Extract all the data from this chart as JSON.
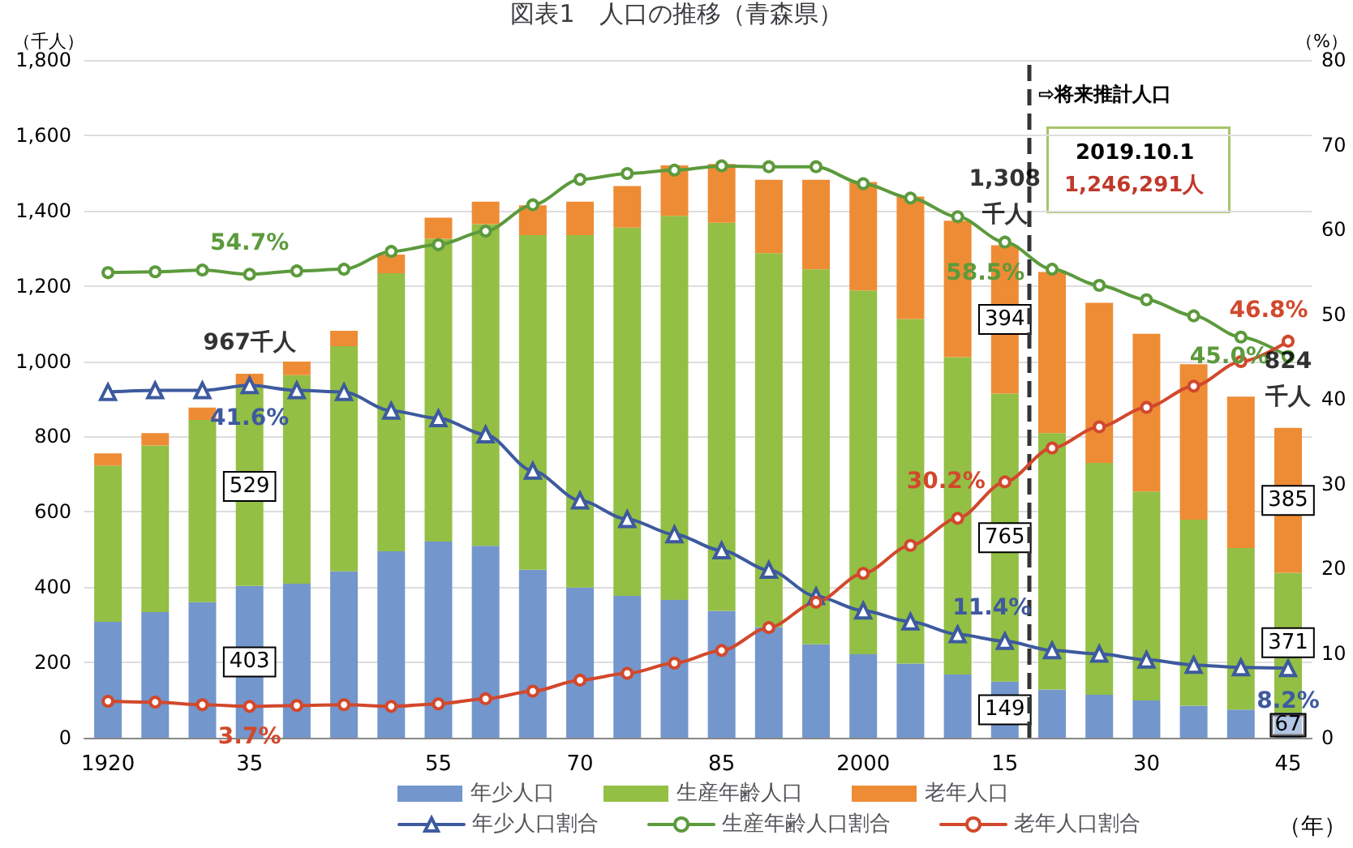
{
  "chart_data": {
    "type": "bar",
    "title": "図表1　人口の推移（青森県）",
    "ylabel": "（千人）",
    "y2label": "（%）",
    "xlabel": "（年）",
    "x": [
      1920,
      1925,
      1930,
      1935,
      1940,
      1945,
      1950,
      1955,
      1960,
      1965,
      1970,
      1975,
      1980,
      1985,
      1990,
      1995,
      2000,
      2005,
      2010,
      2015,
      2020,
      2025,
      2030,
      2035,
      2040,
      2045
    ],
    "xlim": [
      1917.5,
      2047.5
    ],
    "xticks": [
      {
        "value": 1920,
        "label": "1920"
      },
      {
        "value": 1935,
        "label": "35"
      },
      {
        "value": 1955,
        "label": "55"
      },
      {
        "value": 1970,
        "label": "70"
      },
      {
        "value": 1985,
        "label": "85"
      },
      {
        "value": 2000,
        "label": "2000"
      },
      {
        "value": 2015,
        "label": "15"
      },
      {
        "value": 2030,
        "label": "30"
      },
      {
        "value": 2045,
        "label": "45"
      }
    ],
    "ylim": [
      0,
      1800
    ],
    "yticks": [
      0,
      200,
      400,
      600,
      800,
      {
        "value": 1000,
        "label": "1,000"
      },
      {
        "value": 1200,
        "label": "1,200"
      },
      {
        "value": 1400,
        "label": "1,400"
      },
      {
        "value": 1600,
        "label": "1,600"
      },
      {
        "value": 1800,
        "label": "1,800"
      }
    ],
    "y2lim": [
      0,
      80
    ],
    "y2ticks": [
      0,
      10,
      20,
      30,
      40,
      50,
      60,
      70,
      80
    ],
    "stacked": true,
    "grid": "y",
    "legend": "bottom",
    "series": [
      {
        "name": "年少人口",
        "color": "#7396cc",
        "values": [
          308,
          334,
          360,
          403,
          409,
          442,
          495,
          521,
          510,
          446,
          399,
          377,
          366,
          337,
          294,
          248,
          222,
          197,
          168,
          149,
          128,
          114,
          99,
          85,
          75,
          67
        ],
        "value_labels": [
          null,
          null,
          null,
          "403",
          null,
          null,
          null,
          null,
          null,
          null,
          null,
          null,
          null,
          null,
          null,
          null,
          null,
          null,
          null,
          "149",
          null,
          null,
          null,
          null,
          null,
          "67"
        ]
      },
      {
        "name": "生産年齢人口",
        "color": "#93bf45",
        "values": [
          415,
          442,
          484,
          529,
          554,
          598,
          739,
          804,
          854,
          889,
          936,
          978,
          1020,
          1031,
          993,
          996,
          966,
          915,
          843,
          765,
          681,
          616,
          555,
          494,
          429,
          371
        ],
        "value_labels": [
          null,
          null,
          null,
          "529",
          null,
          null,
          null,
          null,
          null,
          null,
          null,
          null,
          null,
          null,
          null,
          null,
          null,
          null,
          null,
          "765",
          null,
          null,
          null,
          null,
          null,
          "371"
        ]
      },
      {
        "name": "老年人口",
        "color": "#ee8c35",
        "values": [
          32,
          33,
          33,
          35,
          36,
          41,
          49,
          56,
          60,
          79,
          89,
          110,
          134,
          156,
          195,
          238,
          288,
          325,
          362,
          394,
          428,
          425,
          419,
          413,
          402,
          385
        ],
        "value_labels": [
          null,
          null,
          null,
          null,
          null,
          null,
          null,
          null,
          null,
          null,
          null,
          null,
          null,
          null,
          null,
          null,
          null,
          null,
          null,
          "394",
          null,
          null,
          null,
          null,
          null,
          "385"
        ]
      },
      {
        "name": "年少人口割合",
        "type": "line",
        "axis": "y2",
        "marker": "triangle",
        "color": "#3d5a9e",
        "values": [
          40.8,
          41.0,
          41.0,
          41.6,
          41.0,
          40.8,
          38.6,
          37.7,
          35.8,
          31.5,
          28.0,
          25.8,
          24.0,
          22.1,
          19.8,
          16.7,
          15.0,
          13.7,
          12.2,
          11.4,
          10.3,
          9.9,
          9.2,
          8.6,
          8.3,
          8.2
        ],
        "value_labels": [
          null,
          null,
          null,
          "41.6%",
          null,
          null,
          null,
          null,
          null,
          null,
          null,
          null,
          null,
          null,
          null,
          null,
          null,
          null,
          null,
          "11.4%",
          null,
          null,
          null,
          null,
          null,
          "8.2%"
        ]
      },
      {
        "name": "生産年齢人口割合",
        "type": "line",
        "axis": "y2",
        "marker": "circle",
        "color": "#5c9a3c",
        "values": [
          54.9,
          55.0,
          55.2,
          54.7,
          55.1,
          55.3,
          57.4,
          58.2,
          59.8,
          62.9,
          65.9,
          66.6,
          67.0,
          67.5,
          67.4,
          67.4,
          65.4,
          63.7,
          61.5,
          58.5,
          55.3,
          53.4,
          51.7,
          49.8,
          47.3,
          45.0
        ],
        "value_labels": [
          null,
          null,
          null,
          "54.7%",
          null,
          null,
          null,
          null,
          null,
          null,
          null,
          null,
          null,
          null,
          null,
          null,
          null,
          null,
          null,
          "58.5%",
          null,
          null,
          null,
          null,
          null,
          "45.0%"
        ]
      },
      {
        "name": "老年人口割合",
        "type": "line",
        "axis": "y2",
        "marker": "circle",
        "color": "#d2482c",
        "values": [
          4.3,
          4.2,
          3.9,
          3.7,
          3.8,
          3.9,
          3.7,
          4.0,
          4.6,
          5.5,
          6.8,
          7.6,
          8.8,
          10.3,
          13.0,
          16.0,
          19.4,
          22.7,
          25.9,
          30.2,
          34.2,
          36.7,
          39.0,
          41.5,
          44.4,
          46.8
        ],
        "value_labels": [
          null,
          null,
          null,
          "3.7%",
          null,
          null,
          null,
          null,
          null,
          null,
          null,
          null,
          null,
          null,
          null,
          null,
          null,
          null,
          null,
          "30.2%",
          null,
          null,
          null,
          null,
          null,
          "46.8%"
        ]
      }
    ],
    "totals": [
      null,
      null,
      null,
      "967千人",
      null,
      null,
      null,
      null,
      null,
      null,
      null,
      null,
      null,
      null,
      null,
      null,
      null,
      null,
      null,
      "1,308\n千人",
      null,
      null,
      null,
      null,
      null,
      "824\n千人"
    ],
    "ref_lines": [
      {
        "axis": "x",
        "value": 2017.5,
        "color": "#333333",
        "line_style": "dashed"
      }
    ],
    "annotations": [
      "⇨将来推計人口",
      "2019.10.1",
      "1,246,291人"
    ]
  }
}
